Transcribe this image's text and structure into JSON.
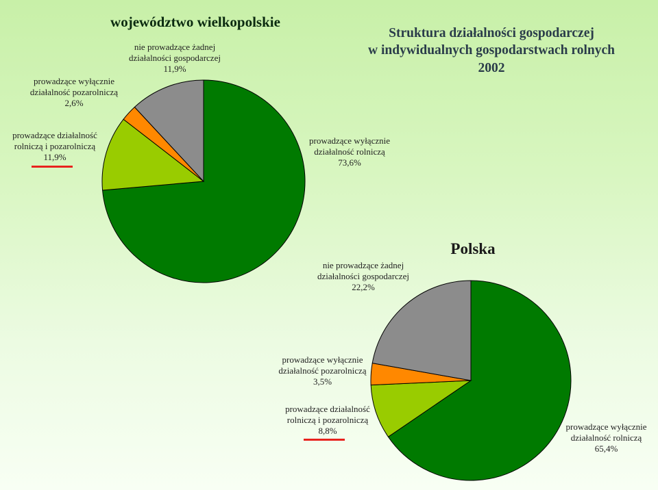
{
  "colors": {
    "rolnicza": "#007a00",
    "rolnicza_i_pozarolnicza": "#99cc00",
    "pozarolnicza": "#ff8800",
    "nie_prowadzace": "#8c8c8c",
    "outline": "#000000",
    "underline": "#e8231e"
  },
  "wlkp": {
    "title": "województwo wielkopolskie",
    "labels": {
      "nie_prowadzace": [
        "nie prowadzące żadnej",
        "działalności gospodarczej",
        "11,9%"
      ],
      "pozarolnicza": [
        "prowadzące wyłącznie",
        "działalność pozarolniczą",
        "2,6%"
      ],
      "rolnicza_i_pozarolnicza": [
        "prowadzące działalność",
        "rolniczą i pozarolniczą",
        "11,9%"
      ],
      "rolnicza": [
        "prowadzące wyłącznie",
        "działalność rolniczą",
        "73,6%"
      ]
    }
  },
  "polska": {
    "title": "Polska",
    "labels": {
      "nie_prowadzace": [
        "nie prowadzące żadnej",
        "działalności gospodarczej",
        "22,2%"
      ],
      "pozarolnicza": [
        "prowadzące wyłącznie",
        "działalność pozarolniczą",
        "3,5%"
      ],
      "rolnicza_i_pozarolnicza": [
        "prowadzące działalność",
        "rolniczą i pozarolniczą",
        "8,8%"
      ],
      "rolnicza": [
        "prowadzące wyłącznie",
        "działalność rolniczą",
        "65,4%"
      ]
    }
  },
  "main_title": [
    "Struktura działalności gospodarczej",
    "w indywidualnych gospodarstwach rolnych",
    "2002"
  ],
  "chart_data": [
    {
      "type": "pie",
      "title": "województwo wielkopolskie",
      "categories": [
        "prowadzące wyłącznie działalność rolniczą",
        "prowadzące działalność rolniczą i pozarolniczą",
        "prowadzące wyłącznie działalność pozarolniczą",
        "nie prowadzące żadnej działalności gospodarczej"
      ],
      "values": [
        73.6,
        11.9,
        2.6,
        11.9
      ],
      "start": "top, clockwise"
    },
    {
      "type": "pie",
      "title": "Polska",
      "categories": [
        "prowadzące wyłącznie działalność rolniczą",
        "prowadzące działalność rolniczą i pozarolniczą",
        "prowadzące wyłącznie działalność pozarolniczą",
        "nie prowadzące żadnej działalności gospodarczej"
      ],
      "values": [
        65.4,
        8.8,
        3.5,
        22.2
      ],
      "start": "top, clockwise"
    }
  ]
}
